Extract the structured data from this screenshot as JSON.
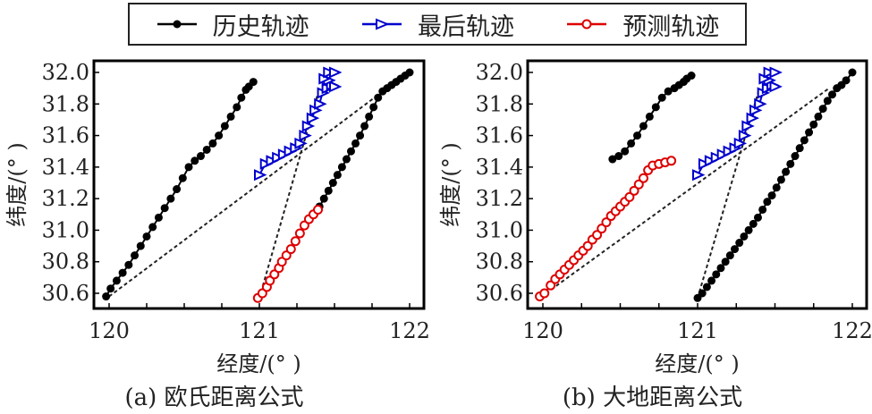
{
  "legend": {
    "items": [
      {
        "label": "历史轨迹",
        "color": "#000000",
        "marker": "filled-circle"
      },
      {
        "label": "最后轨迹",
        "color": "#0000cc",
        "marker": "right-triangle"
      },
      {
        "label": "预测轨迹",
        "color": "#dd0000",
        "marker": "open-circle"
      }
    ]
  },
  "chart_data": [
    {
      "type": "line",
      "caption": "(a) 欧氏距离公式",
      "xlabel": "经度/(°  )",
      "ylabel": "纬度/(°  )",
      "xlim": [
        119.9,
        122.1
      ],
      "ylim": [
        30.5,
        32.07
      ],
      "xticks": [
        120,
        121,
        122
      ],
      "xticks_minor_step": 0.25,
      "yticks": [
        30.6,
        30.8,
        31.0,
        31.2,
        31.4,
        31.6,
        31.8,
        32.0
      ],
      "series": [
        {
          "name": "历史轨迹",
          "color": "#000000",
          "marker": "filled-circle",
          "x": [
            119.98,
            120.01,
            120.05,
            120.09,
            120.13,
            120.17,
            120.21,
            120.25,
            120.29,
            120.33,
            120.37,
            120.41,
            120.45,
            120.49,
            120.53,
            120.57,
            120.61,
            120.65,
            120.69,
            120.73,
            120.77,
            120.81,
            120.85,
            120.88,
            120.91,
            120.93,
            120.96
          ],
          "y": [
            30.58,
            30.63,
            30.68,
            30.73,
            30.78,
            30.84,
            30.9,
            30.96,
            31.02,
            31.08,
            31.14,
            31.2,
            31.26,
            31.33,
            31.4,
            31.44,
            31.47,
            31.51,
            31.55,
            31.6,
            31.66,
            31.72,
            31.78,
            31.84,
            31.89,
            31.91,
            31.94
          ]
        },
        {
          "name": "历史轨迹-2",
          "color": "#000000",
          "marker": "filled-circle",
          "x": [
            121.4,
            121.43,
            121.46,
            121.49,
            121.52,
            121.55,
            121.58,
            121.61,
            121.64,
            121.67,
            121.7,
            121.73,
            121.76,
            121.79,
            121.82,
            121.85,
            121.88,
            121.91,
            121.94,
            121.97,
            122.0
          ],
          "y": [
            31.15,
            31.2,
            31.25,
            31.3,
            31.35,
            31.4,
            31.45,
            31.5,
            31.55,
            31.6,
            31.66,
            31.72,
            31.78,
            31.84,
            31.88,
            31.9,
            31.92,
            31.94,
            31.96,
            31.98,
            32.0
          ]
        },
        {
          "name": "最后轨迹",
          "color": "#0000cc",
          "marker": "right-triangle",
          "x": [
            121.0,
            121.04,
            121.08,
            121.12,
            121.16,
            121.2,
            121.24,
            121.27,
            121.3,
            121.32,
            121.35,
            121.37,
            121.4,
            121.42,
            121.45,
            121.48,
            121.5,
            121.46,
            121.43,
            121.46,
            121.5
          ],
          "y": [
            31.35,
            31.42,
            31.44,
            31.46,
            31.48,
            31.5,
            31.52,
            31.55,
            31.6,
            31.66,
            31.71,
            31.76,
            31.8,
            31.87,
            31.9,
            31.92,
            31.91,
            31.95,
            31.96,
            32.0,
            32.0
          ]
        },
        {
          "name": "预测轨迹",
          "color": "#dd0000",
          "marker": "open-circle",
          "x": [
            120.99,
            121.02,
            121.05,
            121.07,
            121.1,
            121.13,
            121.15,
            121.18,
            121.21,
            121.24,
            121.27,
            121.3,
            121.33,
            121.36,
            121.39
          ],
          "y": [
            30.57,
            30.6,
            30.64,
            30.68,
            30.72,
            30.76,
            30.8,
            30.84,
            30.88,
            30.93,
            30.98,
            31.03,
            31.07,
            31.1,
            31.13
          ]
        }
      ],
      "dashed_lines": [
        {
          "x": [
            120.0,
            121.85
          ],
          "y": [
            30.58,
            31.9
          ]
        },
        {
          "x": [
            121.0,
            121.4
          ],
          "y": [
            30.57,
            31.9
          ]
        }
      ]
    },
    {
      "type": "line",
      "caption": "(b) 大地距离公式",
      "xlabel": "经度/(°  )",
      "ylabel": "纬度/(°  )",
      "xlim": [
        119.9,
        122.1
      ],
      "ylim": [
        30.5,
        32.07
      ],
      "xticks": [
        120,
        121,
        122
      ],
      "xticks_minor_step": 0.25,
      "yticks": [
        30.6,
        30.8,
        31.0,
        31.2,
        31.4,
        31.6,
        31.8,
        32.0
      ],
      "series": [
        {
          "name": "历史轨迹",
          "color": "#000000",
          "marker": "filled-circle",
          "x": [
            120.45,
            120.49,
            120.53,
            120.57,
            120.61,
            120.65,
            120.69,
            120.73,
            120.77,
            120.81,
            120.85,
            120.88,
            120.91,
            120.93,
            120.96
          ],
          "y": [
            31.45,
            31.47,
            31.5,
            31.55,
            31.6,
            31.66,
            31.72,
            31.78,
            31.84,
            31.88,
            31.9,
            31.92,
            31.94,
            31.96,
            31.98
          ]
        },
        {
          "name": "历史轨迹-2",
          "color": "#000000",
          "marker": "filled-circle",
          "x": [
            121.0,
            121.03,
            121.06,
            121.09,
            121.12,
            121.15,
            121.18,
            121.21,
            121.24,
            121.27,
            121.3,
            121.33,
            121.36,
            121.39,
            121.42,
            121.45,
            121.48,
            121.51,
            121.54,
            121.57,
            121.6,
            121.63,
            121.66,
            121.69,
            121.72,
            121.75,
            121.78,
            121.81,
            121.84,
            121.87,
            121.9,
            121.93,
            121.96,
            122.0
          ],
          "y": [
            30.57,
            30.6,
            30.64,
            30.68,
            30.72,
            30.76,
            30.8,
            30.84,
            30.88,
            30.92,
            30.96,
            31.0,
            31.04,
            31.08,
            31.13,
            31.18,
            31.22,
            31.27,
            31.32,
            31.37,
            31.42,
            31.47,
            31.52,
            31.57,
            31.62,
            31.67,
            31.72,
            31.77,
            31.82,
            31.86,
            31.9,
            31.92,
            31.95,
            32.0
          ]
        },
        {
          "name": "最后轨迹",
          "color": "#0000cc",
          "marker": "right-triangle",
          "x": [
            121.0,
            121.04,
            121.08,
            121.12,
            121.16,
            121.2,
            121.24,
            121.27,
            121.3,
            121.32,
            121.35,
            121.37,
            121.4,
            121.42,
            121.45,
            121.48,
            121.5,
            121.46,
            121.43,
            121.46,
            121.5
          ],
          "y": [
            31.35,
            31.42,
            31.44,
            31.46,
            31.48,
            31.5,
            31.52,
            31.55,
            31.6,
            31.66,
            31.71,
            31.76,
            31.8,
            31.87,
            31.9,
            31.92,
            31.91,
            31.95,
            31.96,
            32.0,
            32.0
          ]
        },
        {
          "name": "预测轨迹",
          "color": "#dd0000",
          "marker": "open-circle",
          "x": [
            119.98,
            120.01,
            120.05,
            120.08,
            120.11,
            120.14,
            120.17,
            120.2,
            120.23,
            120.26,
            120.29,
            120.32,
            120.35,
            120.38,
            120.41,
            120.44,
            120.47,
            120.5,
            120.53,
            120.56,
            120.59,
            120.62,
            120.65,
            120.68,
            120.71,
            120.75,
            120.79,
            120.83
          ],
          "y": [
            30.58,
            30.6,
            30.65,
            30.69,
            30.72,
            30.75,
            30.78,
            30.81,
            30.84,
            30.87,
            30.9,
            30.94,
            30.97,
            31.01,
            31.05,
            31.09,
            31.12,
            31.15,
            31.18,
            31.21,
            31.25,
            31.29,
            31.33,
            31.38,
            31.41,
            31.42,
            31.43,
            31.44
          ]
        }
      ],
      "dashed_lines": [
        {
          "x": [
            120.02,
            121.85
          ],
          "y": [
            30.6,
            31.9
          ]
        },
        {
          "x": [
            121.0,
            121.4
          ],
          "y": [
            30.57,
            31.9
          ]
        }
      ]
    }
  ]
}
